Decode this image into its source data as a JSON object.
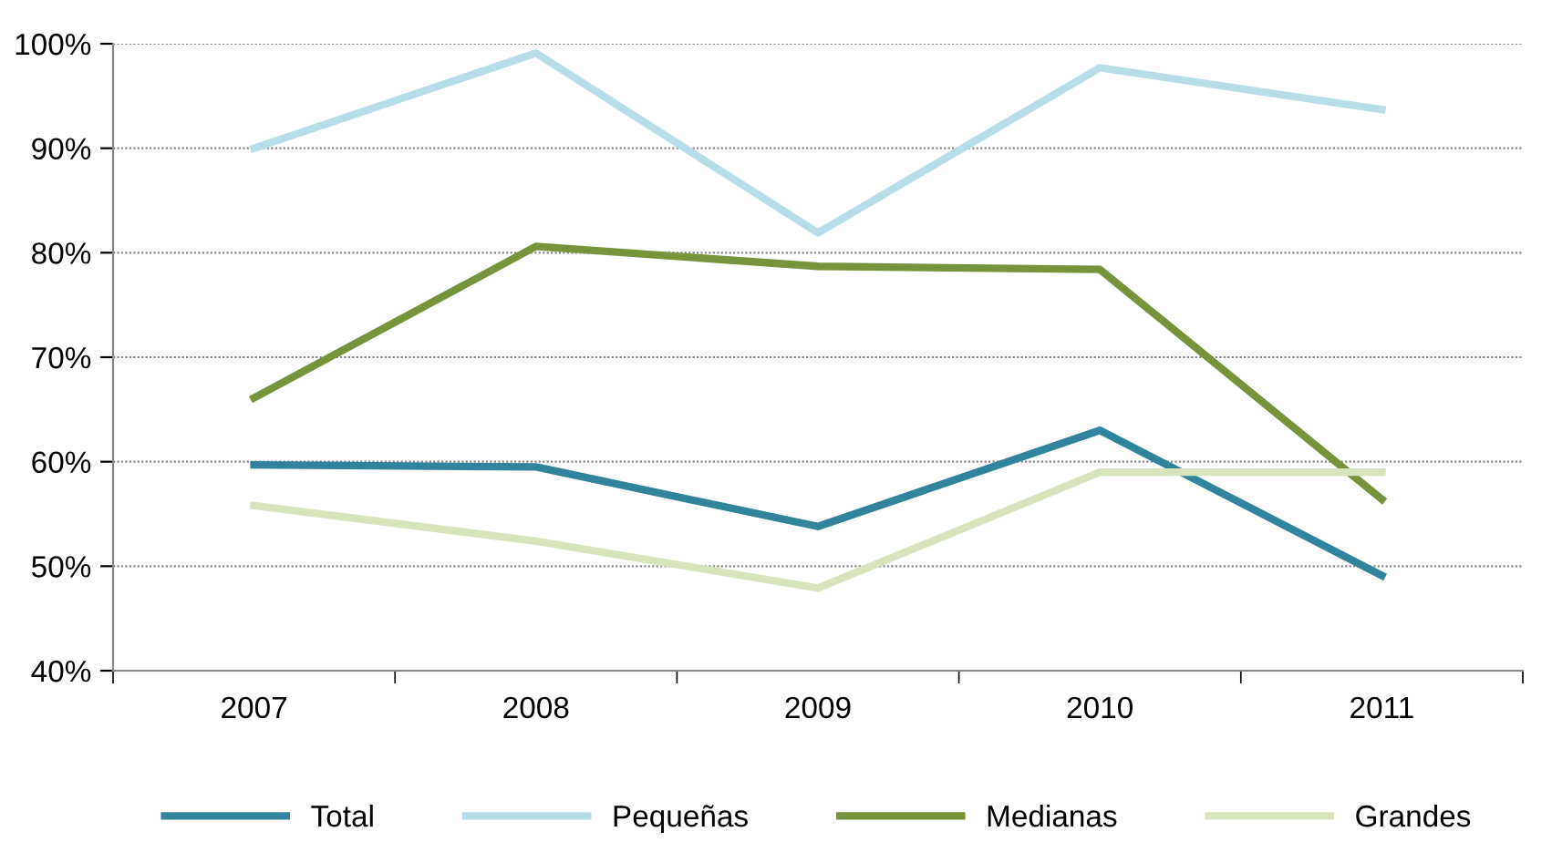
{
  "chart_data": {
    "type": "line",
    "categories": [
      "2007",
      "2008",
      "2009",
      "2010",
      "2011"
    ],
    "series": [
      {
        "name": "Total",
        "color": "#31849b",
        "values": [
          59.7,
          59.5,
          53.8,
          63.0,
          49.1
        ]
      },
      {
        "name": "Pequeñas",
        "color": "#b7dee8",
        "values": [
          90.0,
          99.1,
          81.9,
          97.7,
          93.7
        ]
      },
      {
        "name": "Medianas",
        "color": "#77933c",
        "values": [
          66.1,
          80.6,
          78.7,
          78.4,
          56.4
        ]
      },
      {
        "name": "Grandes",
        "color": "#d7e4bd",
        "values": [
          55.8,
          52.4,
          47.9,
          59.0,
          59.0
        ]
      }
    ],
    "ylim": [
      40,
      100
    ],
    "yticks": [
      {
        "value": 40,
        "label": "40%"
      },
      {
        "value": 50,
        "label": "50%"
      },
      {
        "value": 60,
        "label": "60%"
      },
      {
        "value": 70,
        "label": "70%"
      },
      {
        "value": 80,
        "label": "80%"
      },
      {
        "value": 90,
        "label": "90%"
      },
      {
        "value": 100,
        "label": "100%"
      }
    ],
    "grid": "y",
    "legend": "bottom",
    "marker": "none",
    "line_style": "solid"
  }
}
